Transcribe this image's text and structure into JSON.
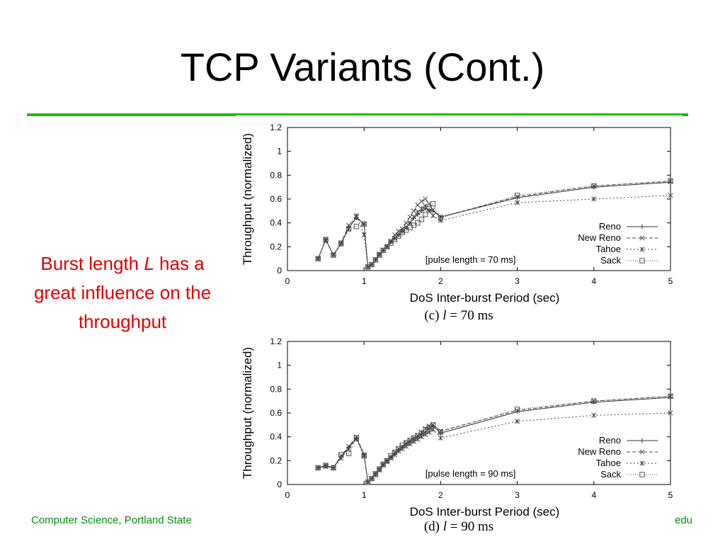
{
  "slide": {
    "title": "TCP Variants (Cont.)",
    "bullet_before": "Burst length ",
    "bullet_var": "L",
    "bullet_after": " has a great influence on the throughput",
    "footer_left": "Computer Science, Portland State",
    "footer_right": "edu",
    "accent_color": "#22b814",
    "bullet_color": "#e10000"
  },
  "chart_data": [
    {
      "type": "line",
      "caption_prefix": "(c) ",
      "caption_var": "l",
      "caption_suffix": " = 70 ms",
      "annotation": "[pulse length = 70 ms]",
      "xlabel": "DoS Inter-burst Period (sec)",
      "ylabel": "Throughput (normalized)",
      "xlim": [
        0,
        5
      ],
      "ylim": [
        0,
        1.2
      ],
      "xticks": [
        0,
        1,
        2,
        3,
        4,
        5
      ],
      "yticks": [
        0,
        0.2,
        0.4,
        0.6,
        0.8,
        1,
        1.2
      ],
      "grid": false,
      "legend_position": "bottom-right",
      "series": [
        {
          "name": "Reno",
          "marker": "plus",
          "dash": "",
          "color": "#333333",
          "x": [
            0.4,
            0.5,
            0.6,
            0.7,
            0.8,
            0.9,
            1.0,
            1.05,
            1.1,
            1.15,
            1.2,
            1.25,
            1.3,
            1.35,
            1.4,
            1.45,
            1.5,
            1.55,
            1.6,
            1.65,
            1.7,
            1.75,
            1.8,
            1.85,
            1.9,
            2.0,
            3.0,
            4.0,
            5.0
          ],
          "y": [
            0.1,
            0.26,
            0.13,
            0.23,
            0.36,
            0.44,
            0.39,
            0.03,
            0.05,
            0.09,
            0.14,
            0.17,
            0.2,
            0.24,
            0.27,
            0.3,
            0.33,
            0.36,
            0.4,
            0.44,
            0.47,
            0.5,
            0.52,
            0.51,
            0.5,
            0.45,
            0.61,
            0.7,
            0.74
          ]
        },
        {
          "name": "New Reno",
          "marker": "x",
          "dash": "5 3",
          "color": "#444444",
          "x": [
            0.4,
            0.5,
            0.6,
            0.7,
            0.8,
            0.9,
            1.0,
            1.05,
            1.1,
            1.15,
            1.2,
            1.25,
            1.3,
            1.35,
            1.4,
            1.45,
            1.5,
            1.55,
            1.6,
            1.65,
            1.7,
            1.75,
            1.8,
            1.85,
            1.9,
            2.0,
            3.0,
            4.0,
            5.0
          ],
          "y": [
            0.1,
            0.26,
            0.13,
            0.23,
            0.38,
            0.45,
            0.39,
            0.03,
            0.05,
            0.09,
            0.14,
            0.17,
            0.2,
            0.25,
            0.3,
            0.33,
            0.35,
            0.4,
            0.45,
            0.5,
            0.55,
            0.58,
            0.6,
            0.56,
            0.51,
            0.45,
            0.62,
            0.71,
            0.75
          ]
        },
        {
          "name": "Tahoe",
          "marker": "star",
          "dash": "2 3",
          "color": "#444444",
          "x": [
            0.4,
            0.5,
            0.6,
            0.7,
            0.8,
            0.9,
            1.0,
            1.05,
            1.1,
            1.15,
            1.2,
            1.25,
            1.3,
            1.35,
            1.4,
            1.45,
            1.5,
            1.55,
            1.6,
            1.65,
            1.7,
            1.75,
            1.8,
            1.85,
            1.9,
            2.0,
            3.0,
            4.0,
            5.0
          ],
          "y": [
            0.1,
            0.25,
            0.13,
            0.22,
            0.35,
            0.46,
            0.3,
            0.03,
            0.05,
            0.09,
            0.13,
            0.17,
            0.2,
            0.24,
            0.27,
            0.3,
            0.33,
            0.36,
            0.4,
            0.45,
            0.49,
            0.52,
            0.54,
            0.5,
            0.46,
            0.42,
            0.57,
            0.6,
            0.63
          ]
        },
        {
          "name": "Sack",
          "marker": "square",
          "dash": "1 2",
          "color": "#555555",
          "x": [
            0.4,
            0.5,
            0.6,
            0.7,
            0.8,
            0.9,
            1.0,
            1.05,
            1.1,
            1.15,
            1.2,
            1.25,
            1.3,
            1.35,
            1.4,
            1.45,
            1.5,
            1.55,
            1.6,
            1.65,
            1.7,
            1.75,
            1.8,
            1.85,
            1.9,
            2.0,
            3.0,
            4.0,
            5.0
          ],
          "y": [
            0.1,
            0.26,
            0.13,
            0.23,
            0.35,
            0.37,
            0.39,
            0.03,
            0.05,
            0.09,
            0.13,
            0.17,
            0.2,
            0.23,
            0.26,
            0.29,
            0.32,
            0.34,
            0.36,
            0.38,
            0.4,
            0.43,
            0.47,
            0.52,
            0.56,
            0.44,
            0.63,
            0.71,
            0.75
          ]
        }
      ]
    },
    {
      "type": "line",
      "caption_prefix": "(d) ",
      "caption_var": "l",
      "caption_suffix": " = 90 ms",
      "annotation": "[pulse length = 90 ms]",
      "xlabel": "DoS Inter-burst Period (sec)",
      "ylabel": "Throughput (normalized)",
      "xlim": [
        0,
        5
      ],
      "ylim": [
        0,
        1.2
      ],
      "xticks": [
        0,
        1,
        2,
        3,
        4,
        5
      ],
      "yticks": [
        0,
        0.2,
        0.4,
        0.6,
        0.8,
        1,
        1.2
      ],
      "grid": false,
      "legend_position": "bottom-right",
      "series": [
        {
          "name": "Reno",
          "marker": "plus",
          "dash": "",
          "color": "#333333",
          "x": [
            0.4,
            0.5,
            0.6,
            0.7,
            0.8,
            0.9,
            1.0,
            1.05,
            1.1,
            1.15,
            1.2,
            1.25,
            1.3,
            1.35,
            1.4,
            1.45,
            1.5,
            1.55,
            1.6,
            1.65,
            1.7,
            1.75,
            1.8,
            1.85,
            1.9,
            2.0,
            3.0,
            4.0,
            5.0
          ],
          "y": [
            0.14,
            0.16,
            0.14,
            0.23,
            0.31,
            0.39,
            0.25,
            0.02,
            0.05,
            0.09,
            0.13,
            0.17,
            0.2,
            0.23,
            0.26,
            0.29,
            0.31,
            0.34,
            0.36,
            0.38,
            0.4,
            0.42,
            0.44,
            0.47,
            0.49,
            0.43,
            0.61,
            0.69,
            0.73
          ]
        },
        {
          "name": "New Reno",
          "marker": "x",
          "dash": "5 3",
          "color": "#444444",
          "x": [
            0.4,
            0.5,
            0.6,
            0.7,
            0.8,
            0.9,
            1.0,
            1.05,
            1.1,
            1.15,
            1.2,
            1.25,
            1.3,
            1.35,
            1.4,
            1.45,
            1.5,
            1.55,
            1.6,
            1.65,
            1.7,
            1.75,
            1.8,
            1.85,
            1.9,
            2.0,
            3.0,
            4.0,
            5.0
          ],
          "y": [
            0.14,
            0.16,
            0.14,
            0.24,
            0.32,
            0.4,
            0.25,
            0.02,
            0.05,
            0.09,
            0.13,
            0.17,
            0.2,
            0.23,
            0.27,
            0.3,
            0.32,
            0.35,
            0.37,
            0.39,
            0.41,
            0.44,
            0.47,
            0.49,
            0.5,
            0.45,
            0.62,
            0.7,
            0.74
          ]
        },
        {
          "name": "Tahoe",
          "marker": "star",
          "dash": "2 3",
          "color": "#444444",
          "x": [
            0.4,
            0.5,
            0.6,
            0.7,
            0.8,
            0.9,
            1.0,
            1.05,
            1.1,
            1.15,
            1.2,
            1.25,
            1.3,
            1.35,
            1.4,
            1.45,
            1.5,
            1.55,
            1.6,
            1.65,
            1.7,
            1.75,
            1.8,
            1.85,
            1.9,
            2.0,
            3.0,
            4.0,
            5.0
          ],
          "y": [
            0.14,
            0.15,
            0.14,
            0.22,
            0.3,
            0.38,
            0.24,
            0.02,
            0.05,
            0.08,
            0.12,
            0.16,
            0.19,
            0.22,
            0.25,
            0.28,
            0.3,
            0.32,
            0.34,
            0.36,
            0.38,
            0.4,
            0.42,
            0.44,
            0.46,
            0.39,
            0.53,
            0.58,
            0.6
          ]
        },
        {
          "name": "Sack",
          "marker": "square",
          "dash": "1 2",
          "color": "#555555",
          "x": [
            0.4,
            0.5,
            0.6,
            0.7,
            0.8,
            0.9,
            1.0,
            1.05,
            1.1,
            1.15,
            1.2,
            1.25,
            1.3,
            1.35,
            1.4,
            1.45,
            1.5,
            1.55,
            1.6,
            1.65,
            1.7,
            1.75,
            1.8,
            1.85,
            1.9,
            2.0,
            3.0,
            4.0,
            5.0
          ],
          "y": [
            0.14,
            0.16,
            0.14,
            0.25,
            0.26,
            0.39,
            0.24,
            0.02,
            0.05,
            0.09,
            0.13,
            0.17,
            0.2,
            0.24,
            0.27,
            0.3,
            0.33,
            0.35,
            0.37,
            0.39,
            0.41,
            0.43,
            0.46,
            0.48,
            0.5,
            0.44,
            0.63,
            0.7,
            0.74
          ]
        }
      ]
    }
  ]
}
